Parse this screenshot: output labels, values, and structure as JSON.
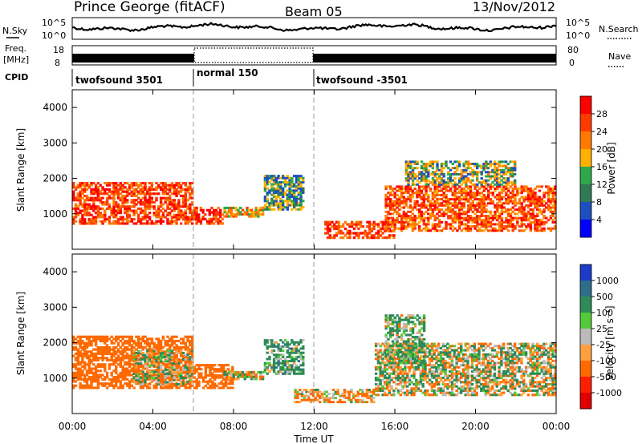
{
  "header": {
    "station": "Prince George (fitACF)",
    "beam": "Beam 05",
    "date": "13/Nov/2012"
  },
  "noise_panel": {
    "left_label": "N.Sky",
    "left_ticks": [
      "10^5",
      "10^0"
    ],
    "right_label": "N.Search",
    "right_ticks": [
      "10^5",
      "10^0"
    ]
  },
  "freq_panel": {
    "left_label_1": "Freq.",
    "left_label_2": "[MHz]",
    "left_ticks": [
      "18",
      "8"
    ],
    "right_label": "Nave",
    "right_ticks": [
      "80",
      "0"
    ]
  },
  "cpid": {
    "label": "CPID",
    "segments": [
      {
        "label": "twofsound 3501",
        "start_hour": 0,
        "end_hour": 6
      },
      {
        "label": "normal 150",
        "start_hour": 6,
        "end_hour": 12
      },
      {
        "label": "twofsound -3501",
        "start_hour": 12,
        "end_hour": 24
      }
    ]
  },
  "x_axis": {
    "label": "Time UT",
    "ticks": [
      "00:00",
      "04:00",
      "08:00",
      "12:00",
      "16:00",
      "20:00",
      "00:00"
    ]
  },
  "chart_data": [
    {
      "type": "heatmap",
      "title": "Power",
      "ylabel": "Slant Range [km]",
      "xlabel": "Time UT",
      "xlim_hours": [
        0,
        24
      ],
      "ylim": [
        0,
        4500
      ],
      "yticks": [
        1000,
        2000,
        3000,
        4000
      ],
      "colorbar": {
        "label": "Power [dB]",
        "ticks": [
          "28",
          "24",
          "20",
          "16",
          "12",
          "8",
          "4"
        ],
        "colors": [
          "#ff0000",
          "#ff3a00",
          "#ff7a00",
          "#ffb000",
          "#2fa84a",
          "#2f7a55",
          "#1e4fbf",
          "#0000ff"
        ]
      },
      "regions": [
        {
          "t_start": 0.0,
          "t_end": 6.0,
          "r_min": 700,
          "r_max": 1900,
          "power_db": 26
        },
        {
          "t_start": 6.0,
          "t_end": 7.5,
          "r_min": 700,
          "r_max": 1200,
          "power_db": 27
        },
        {
          "t_start": 7.5,
          "t_end": 9.5,
          "r_min": 900,
          "r_max": 1200,
          "power_db": 20
        },
        {
          "t_start": 9.5,
          "t_end": 11.5,
          "r_min": 1100,
          "r_max": 2100,
          "power_db": 14
        },
        {
          "t_start": 12.5,
          "t_end": 16.0,
          "r_min": 300,
          "r_max": 800,
          "power_db": 26
        },
        {
          "t_start": 15.5,
          "t_end": 24.0,
          "r_min": 500,
          "r_max": 1800,
          "power_db": 25
        },
        {
          "t_start": 16.5,
          "t_end": 22.0,
          "r_min": 1800,
          "r_max": 2500,
          "power_db": 16
        }
      ]
    },
    {
      "type": "heatmap",
      "title": "Velocity",
      "ylabel": "Slant Range [km]",
      "xlabel": "Time UT",
      "xlim_hours": [
        0,
        24
      ],
      "ylim": [
        0,
        4500
      ],
      "yticks": [
        1000,
        2000,
        3000,
        4000
      ],
      "colorbar": {
        "label": "Velocity [m s⁻¹]",
        "ticks": [
          "1000",
          "500",
          "100",
          "25",
          "-25",
          "-100",
          "-500",
          "-1000"
        ],
        "colors": [
          "#1a3cc8",
          "#2d6e8a",
          "#2e8b57",
          "#55c93a",
          "#bbbbbb",
          "#ffa040",
          "#ff6a00",
          "#ff1e00",
          "#e00000"
        ]
      },
      "regions": [
        {
          "t_start": 0.0,
          "t_end": 6.0,
          "r_min": 700,
          "r_max": 2200,
          "velocity": -300
        },
        {
          "t_start": 3.0,
          "t_end": 6.0,
          "r_min": 800,
          "r_max": 1800,
          "velocity": 0
        },
        {
          "t_start": 6.0,
          "t_end": 8.0,
          "r_min": 700,
          "r_max": 1400,
          "velocity": -300
        },
        {
          "t_start": 7.5,
          "t_end": 9.5,
          "r_min": 950,
          "r_max": 1200,
          "velocity": 0
        },
        {
          "t_start": 9.5,
          "t_end": 11.5,
          "r_min": 1100,
          "r_max": 2100,
          "velocity": 150
        },
        {
          "t_start": 11.0,
          "t_end": 15.0,
          "r_min": 300,
          "r_max": 700,
          "velocity": -100
        },
        {
          "t_start": 15.0,
          "t_end": 24.0,
          "r_min": 500,
          "r_max": 2000,
          "velocity": 0
        },
        {
          "t_start": 15.5,
          "t_end": 17.5,
          "r_min": 1400,
          "r_max": 2800,
          "velocity": 80
        }
      ]
    }
  ]
}
